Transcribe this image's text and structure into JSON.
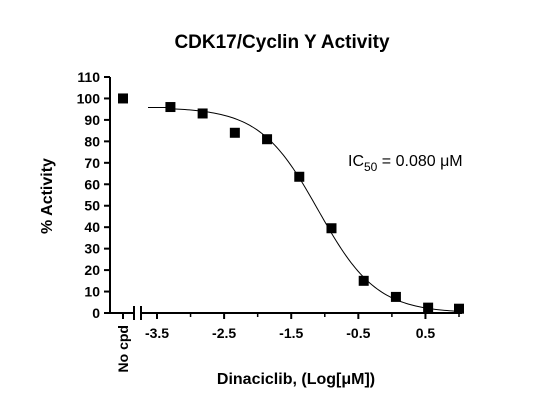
{
  "chart_data": {
    "type": "scatter",
    "title": "CDK17/Cyclin Y Activity",
    "xlabel": "Dinaciclib, (Log[μM])",
    "ylabel": "% Activity",
    "ylim": [
      0,
      110
    ],
    "yticks": [
      "0",
      "10",
      "20",
      "30",
      "40",
      "50",
      "60",
      "70",
      "80",
      "90",
      "100",
      "110"
    ],
    "xlim": [
      -3.5,
      1.0
    ],
    "xticks": [
      {
        "value": -3.5,
        "label": "-3.5"
      },
      {
        "value": -2.5,
        "label": "-2.5"
      },
      {
        "value": -1.5,
        "label": "-1.5"
      },
      {
        "value": -0.5,
        "label": "-0.5"
      },
      {
        "value": 0.5,
        "label": "0.5"
      }
    ],
    "control": {
      "label": "No cpd",
      "value": 100
    },
    "series": [
      {
        "x": [
          -3.3,
          -2.82,
          -2.34,
          -1.86,
          -1.38,
          -0.9,
          -0.42,
          0.06,
          0.54,
          1.0
        ],
        "y": [
          96,
          93,
          84,
          81,
          63.5,
          39.5,
          15,
          7.5,
          2.5,
          2
        ]
      }
    ],
    "fit": {
      "top": 95.8,
      "bottom": 0,
      "log_ic50": -1.097,
      "hill": 1.0
    },
    "grid": false,
    "annotation": {
      "text_pre": "IC",
      "text_sub": "50",
      "text_post": " = 0.080 μM"
    }
  }
}
